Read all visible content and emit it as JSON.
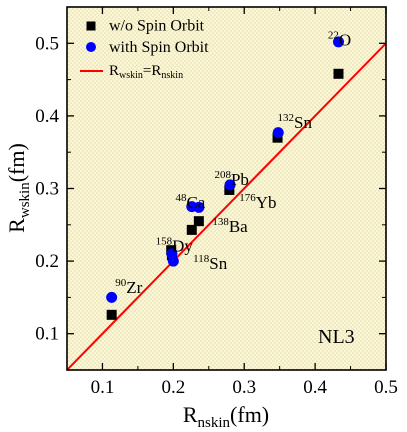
{
  "chart_data": {
    "type": "scatter",
    "xlabel": {
      "main": "R",
      "sub": "nskin",
      "unit": "(fm)"
    },
    "ylabel": {
      "main": "R",
      "sub": "wskin",
      "unit": "(fm)"
    },
    "xlim": [
      0.05,
      0.5
    ],
    "ylim": [
      0.05,
      0.55
    ],
    "xticks": [
      0.1,
      0.2,
      0.3,
      0.4,
      0.5
    ],
    "yticks": [
      0.1,
      0.2,
      0.3,
      0.4,
      0.5
    ],
    "xtick_labels": [
      "0.1",
      "0.2",
      "0.3",
      "0.4",
      "0.5"
    ],
    "ytick_labels": [
      "0.1",
      "0.2",
      "0.3",
      "0.4",
      "0.5"
    ],
    "legend_position": "top-left",
    "annotation": "NL3",
    "background_color": "#fbf6d3",
    "series": [
      {
        "name": "w/o Spin Orbit",
        "marker": "square",
        "color": "#000000",
        "points": [
          {
            "x": 0.113,
            "y": 0.126
          },
          {
            "x": 0.197,
            "y": 0.215
          },
          {
            "x": 0.198,
            "y": 0.208
          },
          {
            "x": 0.226,
            "y": 0.243
          },
          {
            "x": 0.236,
            "y": 0.255
          },
          {
            "x": 0.279,
            "y": 0.298
          },
          {
            "x": 0.347,
            "y": 0.37
          },
          {
            "x": 0.433,
            "y": 0.458
          }
        ]
      },
      {
        "name": "with Spin Orbit",
        "marker": "circle",
        "color": "#0000ff",
        "points": [
          {
            "x": 0.113,
            "y": 0.15
          },
          {
            "x": 0.198,
            "y": 0.21
          },
          {
            "x": 0.2,
            "y": 0.2
          },
          {
            "x": 0.226,
            "y": 0.275
          },
          {
            "x": 0.236,
            "y": 0.274
          },
          {
            "x": 0.28,
            "y": 0.305
          },
          {
            "x": 0.348,
            "y": 0.377
          },
          {
            "x": 0.433,
            "y": 0.502
          }
        ]
      },
      {
        "name": "R_wskin = R_nskin",
        "legend_main_left": "R",
        "legend_sub_left": "wskin",
        "legend_equals": "=",
        "legend_main_right": "R",
        "legend_sub_right": "nskin",
        "marker": "line",
        "color": "#ff0000",
        "points": [
          {
            "x": 0.05,
            "y": 0.05
          },
          {
            "x": 0.5,
            "y": 0.5
          }
        ]
      }
    ],
    "labels": [
      {
        "mass": "22",
        "element": "O",
        "x": 0.418,
        "y": 0.497
      },
      {
        "mass": "132",
        "element": "Sn",
        "x": 0.347,
        "y": 0.383
      },
      {
        "mass": "208",
        "element": "Pb",
        "x": 0.258,
        "y": 0.305
      },
      {
        "mass": "48",
        "element": "Ca",
        "x": 0.203,
        "y": 0.273
      },
      {
        "mass": "176",
        "element": "Yb",
        "x": 0.293,
        "y": 0.273
      },
      {
        "mass": "138",
        "element": "Ba",
        "x": 0.255,
        "y": 0.24
      },
      {
        "mass": "158",
        "element": "Dy",
        "x": 0.175,
        "y": 0.213
      },
      {
        "mass": "118",
        "element": "Sn",
        "x": 0.228,
        "y": 0.189
      },
      {
        "mass": "90",
        "element": "Zr",
        "x": 0.118,
        "y": 0.156
      }
    ]
  }
}
